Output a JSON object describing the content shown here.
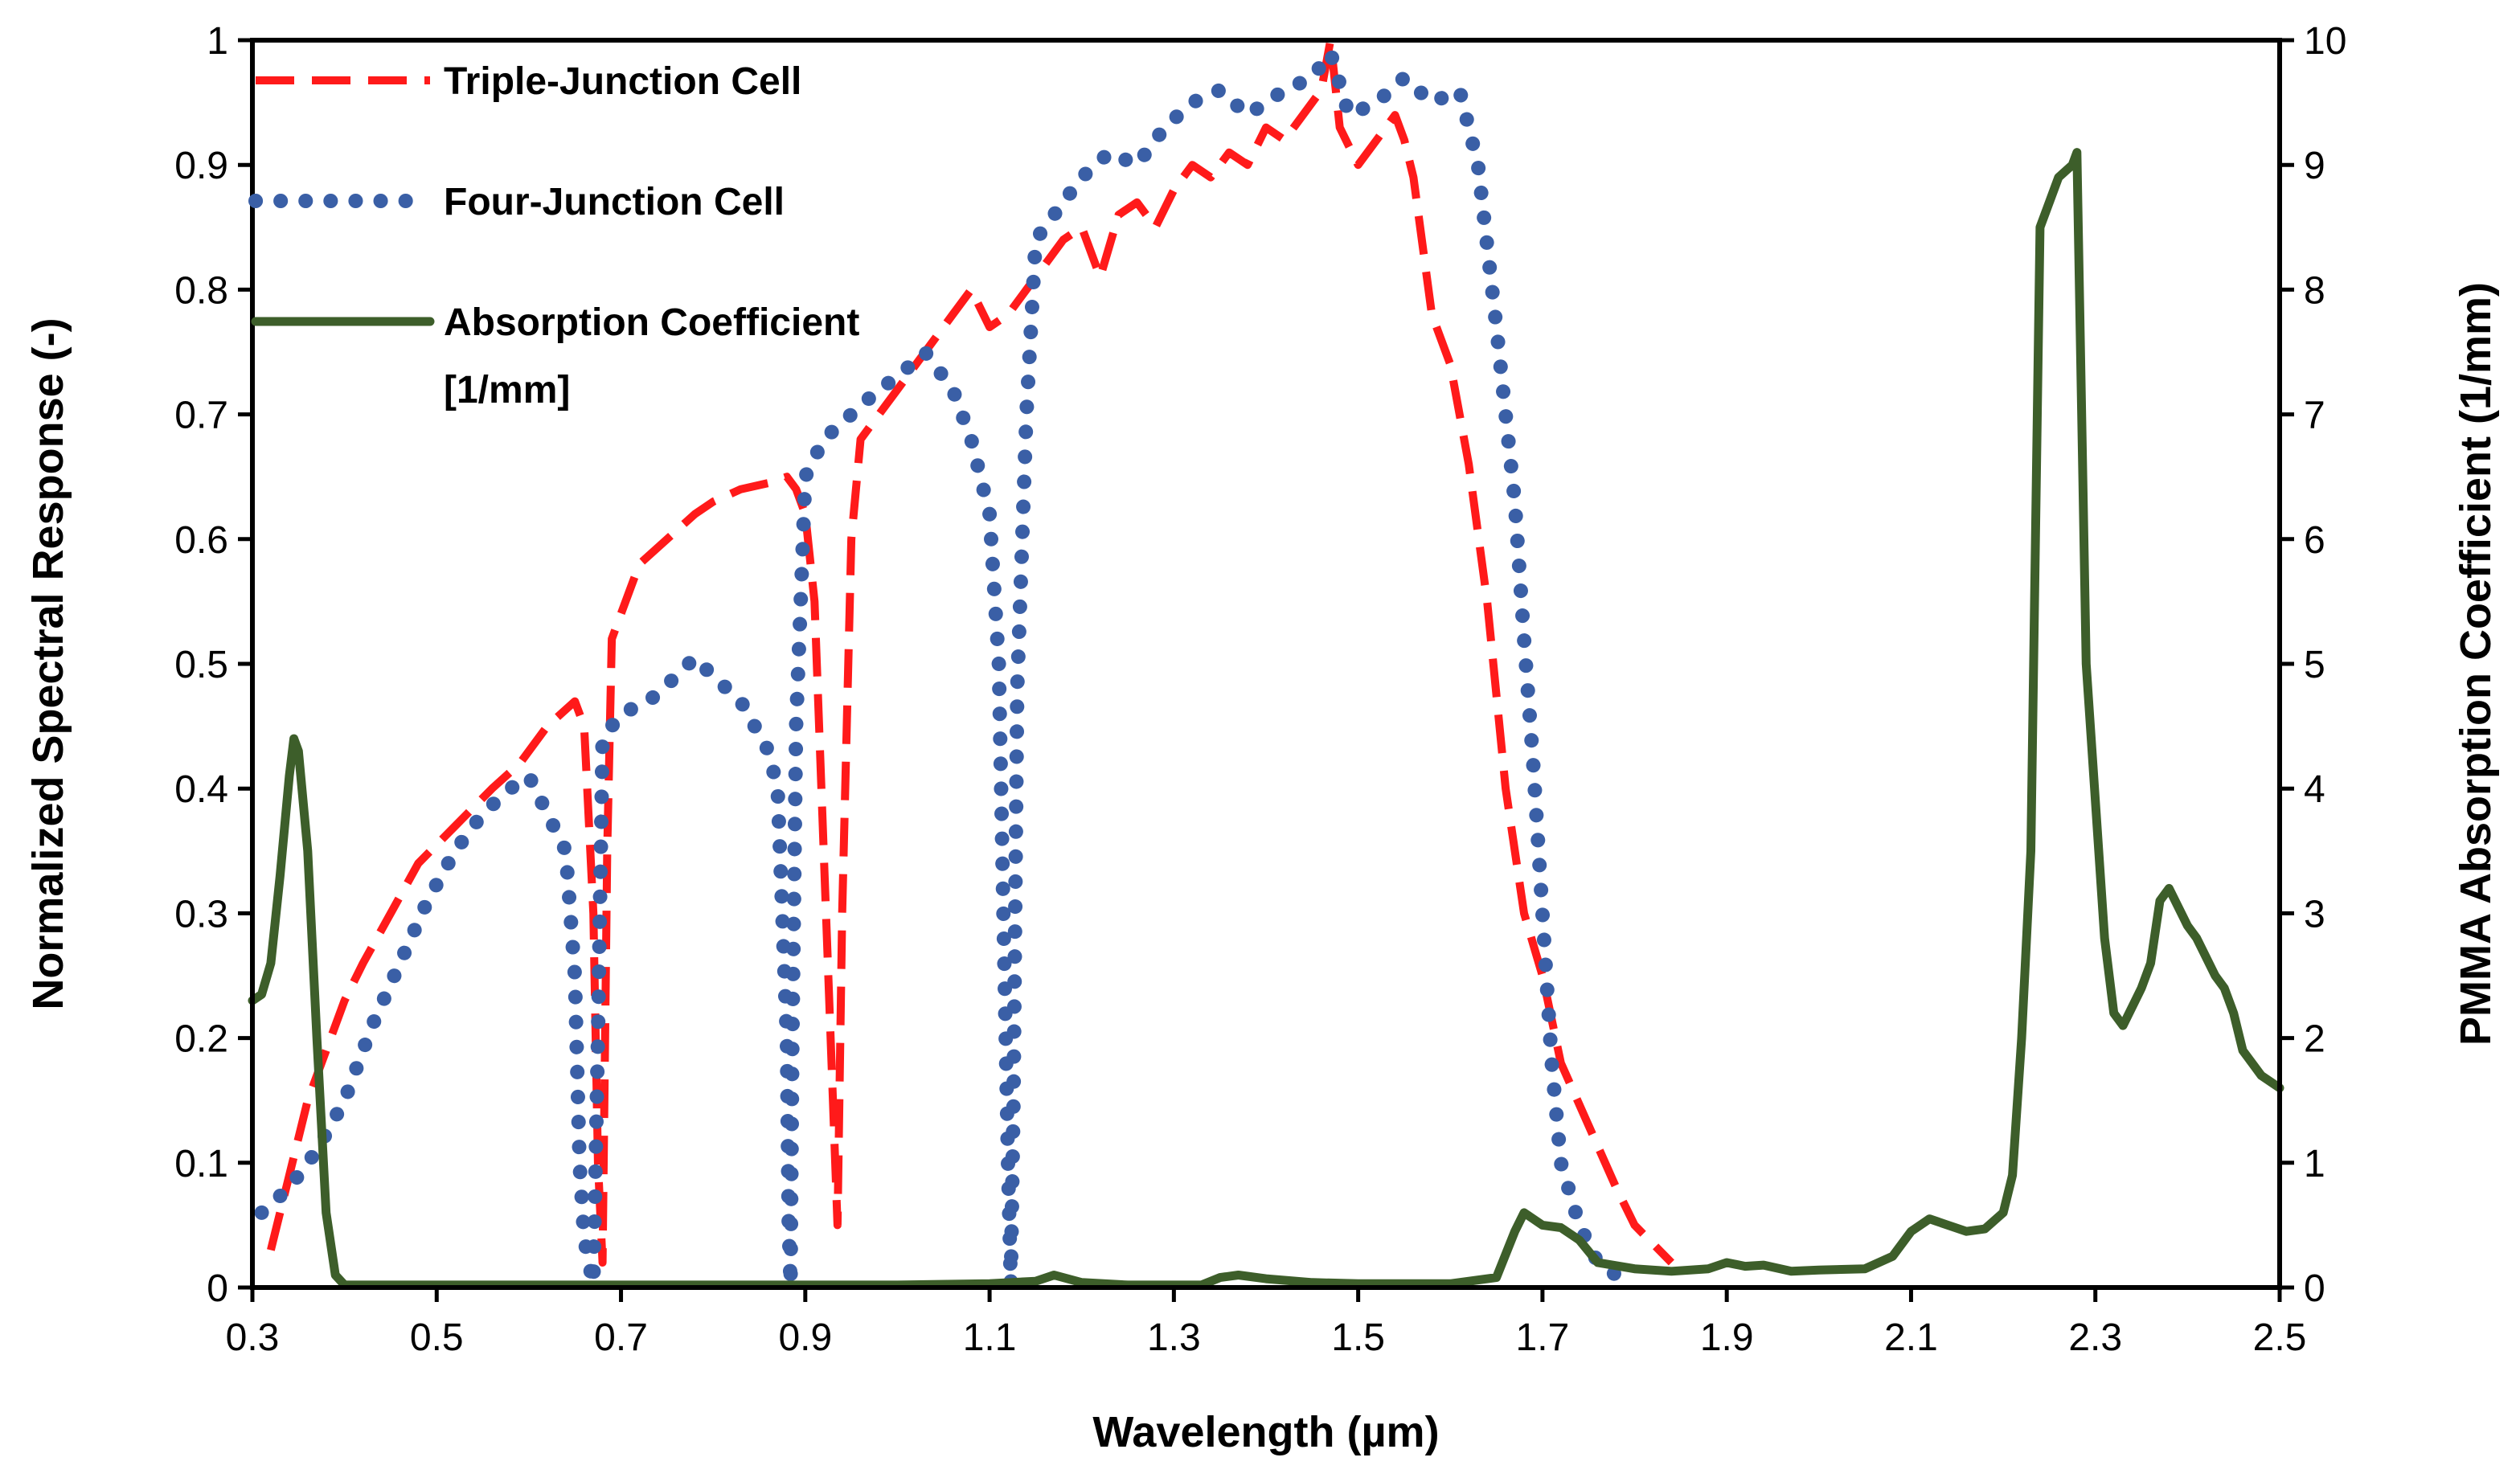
{
  "chart_data": {
    "type": "line",
    "title": "",
    "xlabel": "Wavelength (µm)",
    "ylabel": "Normalized Spectral Response (-)",
    "y2label": "PMMA Absorption Coefficient (1/mm)",
    "xlim": [
      0.3,
      2.5
    ],
    "ylim": [
      0,
      1
    ],
    "y2lim": [
      0,
      10
    ],
    "x_ticks": [
      0.3,
      0.5,
      0.7,
      0.9,
      1.1,
      1.3,
      1.5,
      1.7,
      1.9,
      2.1,
      2.3,
      2.5
    ],
    "x_tick_labels": [
      "0.3",
      "0.5",
      "0.7",
      "0.9",
      "1.1",
      "1.3",
      "1.5",
      "1.7",
      "1.9",
      "2.1",
      "2.3",
      "2.5"
    ],
    "y_ticks": [
      0,
      0.1,
      0.2,
      0.3,
      0.4,
      0.5,
      0.6,
      0.7,
      0.8,
      0.9,
      1
    ],
    "y_tick_labels": [
      "0",
      "0.1",
      "0.2",
      "0.3",
      "0.4",
      "0.5",
      "0.6",
      "0.7",
      "0.8",
      "0.9",
      "1"
    ],
    "y2_ticks": [
      0,
      1,
      2,
      3,
      4,
      5,
      6,
      7,
      8,
      9,
      10
    ],
    "y2_tick_labels": [
      "0",
      "1",
      "2",
      "3",
      "4",
      "5",
      "6",
      "7",
      "8",
      "9",
      "10"
    ],
    "grid": false,
    "legend_position": "top-left",
    "series": [
      {
        "name": "Triple-Junction Cell",
        "label_lines": [
          "Triple-Junction Cell"
        ],
        "axis": "left",
        "style": "dashed",
        "color": "#ff1a1a",
        "points": [
          [
            0.32,
            0.03
          ],
          [
            0.34,
            0.09
          ],
          [
            0.36,
            0.15
          ],
          [
            0.38,
            0.19
          ],
          [
            0.4,
            0.23
          ],
          [
            0.42,
            0.26
          ],
          [
            0.45,
            0.3
          ],
          [
            0.48,
            0.34
          ],
          [
            0.52,
            0.37
          ],
          [
            0.56,
            0.4
          ],
          [
            0.59,
            0.42
          ],
          [
            0.62,
            0.45
          ],
          [
            0.65,
            0.47
          ],
          [
            0.66,
            0.45
          ],
          [
            0.67,
            0.3
          ],
          [
            0.675,
            0.1
          ],
          [
            0.68,
            0.02
          ],
          [
            0.685,
            0.35
          ],
          [
            0.69,
            0.52
          ],
          [
            0.7,
            0.54
          ],
          [
            0.72,
            0.58
          ],
          [
            0.75,
            0.6
          ],
          [
            0.78,
            0.62
          ],
          [
            0.8,
            0.63
          ],
          [
            0.83,
            0.64
          ],
          [
            0.86,
            0.645
          ],
          [
            0.88,
            0.65
          ],
          [
            0.89,
            0.64
          ],
          [
            0.9,
            0.62
          ],
          [
            0.91,
            0.55
          ],
          [
            0.92,
            0.35
          ],
          [
            0.93,
            0.15
          ],
          [
            0.935,
            0.05
          ],
          [
            0.94,
            0.3
          ],
          [
            0.95,
            0.6
          ],
          [
            0.96,
            0.68
          ],
          [
            0.98,
            0.7
          ],
          [
            1.0,
            0.72
          ],
          [
            1.02,
            0.74
          ],
          [
            1.04,
            0.76
          ],
          [
            1.06,
            0.78
          ],
          [
            1.08,
            0.8
          ],
          [
            1.1,
            0.77
          ],
          [
            1.12,
            0.78
          ],
          [
            1.14,
            0.8
          ],
          [
            1.16,
            0.82
          ],
          [
            1.18,
            0.84
          ],
          [
            1.2,
            0.85
          ],
          [
            1.22,
            0.81
          ],
          [
            1.24,
            0.86
          ],
          [
            1.26,
            0.87
          ],
          [
            1.28,
            0.85
          ],
          [
            1.3,
            0.88
          ],
          [
            1.32,
            0.9
          ],
          [
            1.34,
            0.89
          ],
          [
            1.36,
            0.91
          ],
          [
            1.38,
            0.9
          ],
          [
            1.4,
            0.93
          ],
          [
            1.42,
            0.92
          ],
          [
            1.44,
            0.94
          ],
          [
            1.46,
            0.96
          ],
          [
            1.47,
            1.0
          ],
          [
            1.48,
            0.93
          ],
          [
            1.5,
            0.9
          ],
          [
            1.52,
            0.92
          ],
          [
            1.54,
            0.94
          ],
          [
            1.55,
            0.92
          ],
          [
            1.56,
            0.89
          ],
          [
            1.58,
            0.78
          ],
          [
            1.6,
            0.74
          ],
          [
            1.62,
            0.66
          ],
          [
            1.64,
            0.55
          ],
          [
            1.66,
            0.4
          ],
          [
            1.68,
            0.3
          ],
          [
            1.7,
            0.25
          ],
          [
            1.72,
            0.18
          ],
          [
            1.75,
            0.13
          ],
          [
            1.78,
            0.08
          ],
          [
            1.8,
            0.05
          ],
          [
            1.84,
            0.02
          ]
        ]
      },
      {
        "name": "Four-Junction Cell",
        "label_lines": [
          "Four-Junction Cell"
        ],
        "axis": "left",
        "style": "dotted",
        "color": "#3a5fa6",
        "points": [
          [
            0.31,
            0.06
          ],
          [
            0.34,
            0.08
          ],
          [
            0.37,
            0.11
          ],
          [
            0.4,
            0.15
          ],
          [
            0.43,
            0.21
          ],
          [
            0.46,
            0.26
          ],
          [
            0.49,
            0.31
          ],
          [
            0.52,
            0.35
          ],
          [
            0.55,
            0.38
          ],
          [
            0.58,
            0.4
          ],
          [
            0.6,
            0.41
          ],
          [
            0.62,
            0.38
          ],
          [
            0.64,
            0.35
          ],
          [
            0.65,
            0.25
          ],
          [
            0.655,
            0.1
          ],
          [
            0.66,
            0.04
          ],
          [
            0.665,
            0.02
          ],
          [
            0.67,
            0.003
          ],
          [
            0.675,
            0.2
          ],
          [
            0.68,
            0.44
          ],
          [
            0.7,
            0.46
          ],
          [
            0.73,
            0.47
          ],
          [
            0.76,
            0.49
          ],
          [
            0.78,
            0.505
          ],
          [
            0.8,
            0.49
          ],
          [
            0.83,
            0.47
          ],
          [
            0.86,
            0.43
          ],
          [
            0.87,
            0.4
          ],
          [
            0.875,
            0.3
          ],
          [
            0.88,
            0.2
          ],
          [
            0.882,
            0.05
          ],
          [
            0.884,
            0.002
          ],
          [
            0.886,
            0.2
          ],
          [
            0.89,
            0.45
          ],
          [
            0.9,
            0.65
          ],
          [
            0.92,
            0.68
          ],
          [
            0.95,
            0.7
          ],
          [
            0.98,
            0.72
          ],
          [
            1.0,
            0.73
          ],
          [
            1.03,
            0.75
          ],
          [
            1.06,
            0.72
          ],
          [
            1.08,
            0.68
          ],
          [
            1.1,
            0.62
          ],
          [
            1.11,
            0.5
          ],
          [
            1.115,
            0.3
          ],
          [
            1.12,
            0.1
          ],
          [
            1.123,
            0.002
          ],
          [
            1.126,
            0.15
          ],
          [
            1.13,
            0.48
          ],
          [
            1.14,
            0.7
          ],
          [
            1.15,
            0.84
          ],
          [
            1.17,
            0.86
          ],
          [
            1.2,
            0.89
          ],
          [
            1.23,
            0.91
          ],
          [
            1.26,
            0.9
          ],
          [
            1.29,
            0.93
          ],
          [
            1.32,
            0.95
          ],
          [
            1.35,
            0.96
          ],
          [
            1.38,
            0.94
          ],
          [
            1.42,
            0.96
          ],
          [
            1.45,
            0.97
          ],
          [
            1.47,
            0.99
          ],
          [
            1.49,
            0.94
          ],
          [
            1.52,
            0.95
          ],
          [
            1.55,
            0.97
          ],
          [
            1.58,
            0.95
          ],
          [
            1.61,
            0.96
          ],
          [
            1.63,
            0.9
          ],
          [
            1.65,
            0.77
          ],
          [
            1.67,
            0.63
          ],
          [
            1.68,
            0.52
          ],
          [
            1.69,
            0.42
          ],
          [
            1.7,
            0.3
          ],
          [
            1.71,
            0.18
          ],
          [
            1.72,
            0.1
          ],
          [
            1.74,
            0.05
          ],
          [
            1.76,
            0.02
          ],
          [
            1.78,
            0.01
          ]
        ]
      },
      {
        "name": "Absorption Coefficient [1/mm]",
        "label_lines": [
          "Absorption Coefficient",
          "[1/mm]"
        ],
        "axis": "right",
        "style": "solid",
        "color": "#3d5e2a",
        "points": [
          [
            0.3,
            2.3
          ],
          [
            0.31,
            2.35
          ],
          [
            0.32,
            2.6
          ],
          [
            0.33,
            3.3
          ],
          [
            0.34,
            4.1
          ],
          [
            0.345,
            4.4
          ],
          [
            0.35,
            4.3
          ],
          [
            0.36,
            3.5
          ],
          [
            0.37,
            2.0
          ],
          [
            0.38,
            0.6
          ],
          [
            0.39,
            0.1
          ],
          [
            0.4,
            0.02
          ],
          [
            0.5,
            0.02
          ],
          [
            0.6,
            0.02
          ],
          [
            0.7,
            0.02
          ],
          [
            0.8,
            0.02
          ],
          [
            0.9,
            0.02
          ],
          [
            1.0,
            0.02
          ],
          [
            1.1,
            0.03
          ],
          [
            1.15,
            0.05
          ],
          [
            1.17,
            0.1
          ],
          [
            1.2,
            0.04
          ],
          [
            1.25,
            0.02
          ],
          [
            1.33,
            0.02
          ],
          [
            1.35,
            0.08
          ],
          [
            1.37,
            0.1
          ],
          [
            1.4,
            0.07
          ],
          [
            1.45,
            0.04
          ],
          [
            1.5,
            0.03
          ],
          [
            1.6,
            0.03
          ],
          [
            1.65,
            0.08
          ],
          [
            1.67,
            0.45
          ],
          [
            1.68,
            0.6
          ],
          [
            1.7,
            0.5
          ],
          [
            1.72,
            0.48
          ],
          [
            1.74,
            0.38
          ],
          [
            1.76,
            0.2
          ],
          [
            1.8,
            0.15
          ],
          [
            1.84,
            0.13
          ],
          [
            1.88,
            0.15
          ],
          [
            1.9,
            0.2
          ],
          [
            1.92,
            0.17
          ],
          [
            1.94,
            0.18
          ],
          [
            1.97,
            0.13
          ],
          [
            2.0,
            0.14
          ],
          [
            2.05,
            0.15
          ],
          [
            2.08,
            0.25
          ],
          [
            2.1,
            0.45
          ],
          [
            2.12,
            0.55
          ],
          [
            2.14,
            0.5
          ],
          [
            2.16,
            0.45
          ],
          [
            2.18,
            0.47
          ],
          [
            2.2,
            0.6
          ],
          [
            2.21,
            0.9
          ],
          [
            2.22,
            2.0
          ],
          [
            2.23,
            3.5
          ],
          [
            2.24,
            8.5
          ],
          [
            2.25,
            8.7
          ],
          [
            2.26,
            8.9
          ],
          [
            2.275,
            9.0
          ],
          [
            2.28,
            9.1
          ],
          [
            2.29,
            5.0
          ],
          [
            2.31,
            2.8
          ],
          [
            2.32,
            2.2
          ],
          [
            2.33,
            2.1
          ],
          [
            2.35,
            2.4
          ],
          [
            2.36,
            2.6
          ],
          [
            2.37,
            3.1
          ],
          [
            2.38,
            3.2
          ],
          [
            2.4,
            2.9
          ],
          [
            2.41,
            2.8
          ],
          [
            2.43,
            2.5
          ],
          [
            2.44,
            2.4
          ],
          [
            2.45,
            2.2
          ],
          [
            2.46,
            1.9
          ],
          [
            2.47,
            1.8
          ],
          [
            2.48,
            1.7
          ],
          [
            2.5,
            1.6
          ]
        ]
      }
    ]
  }
}
